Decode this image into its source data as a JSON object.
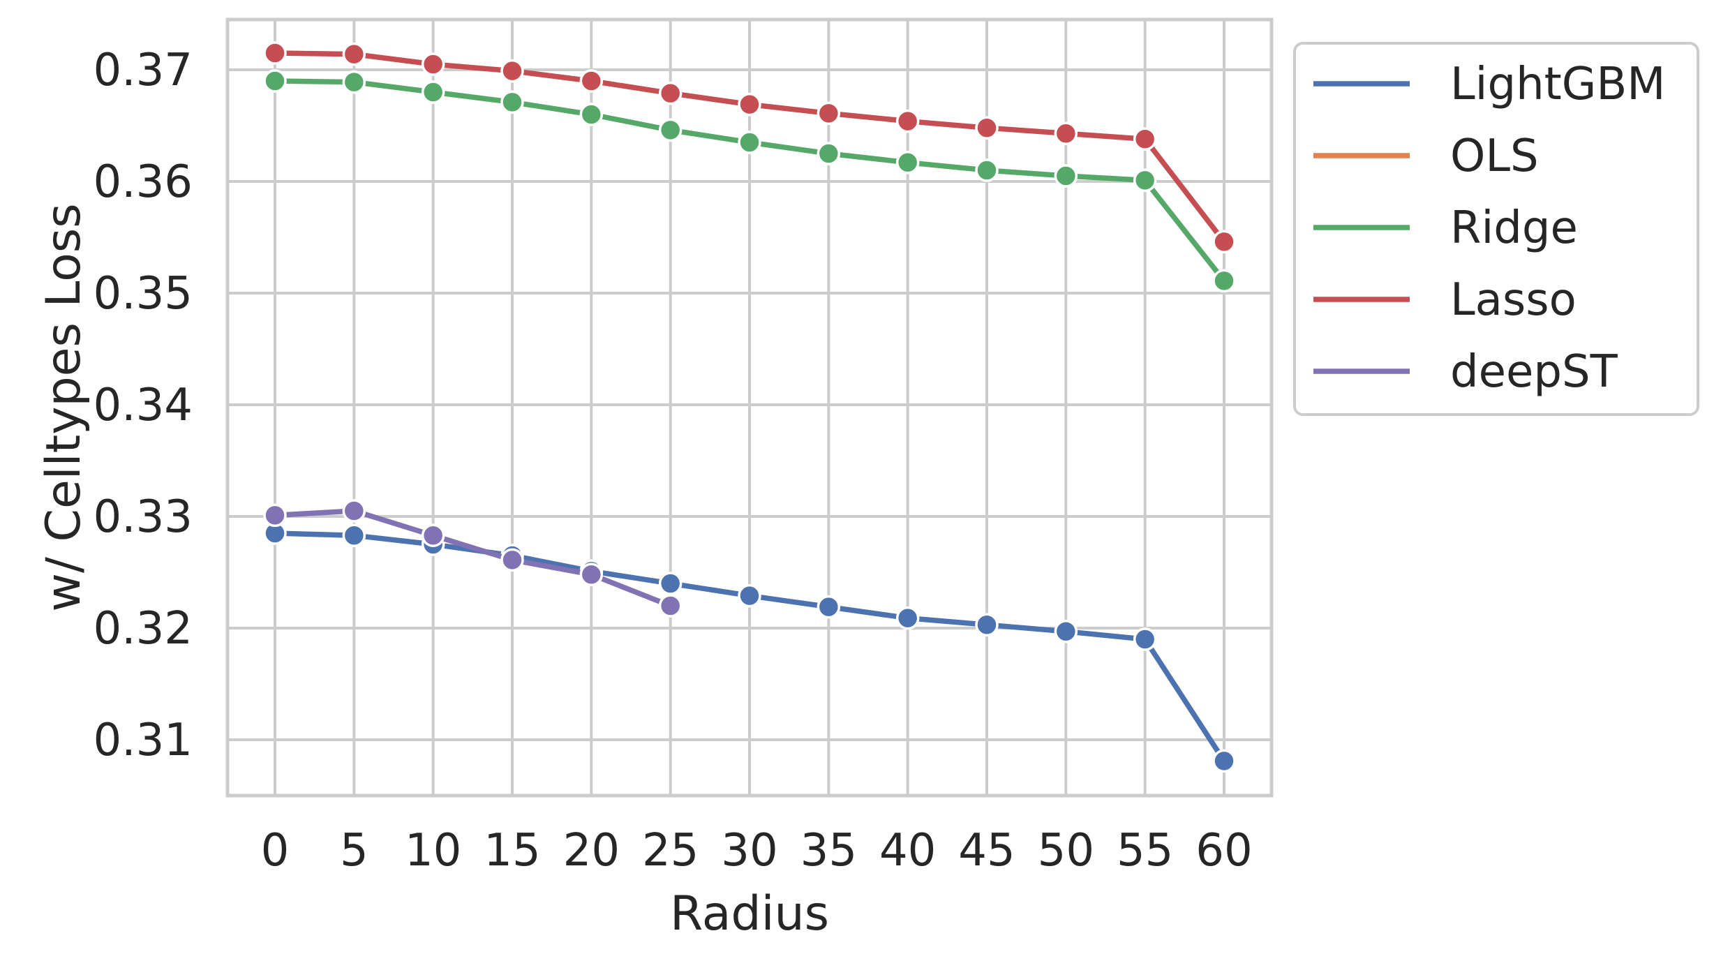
{
  "chart_data": {
    "type": "line",
    "title": "",
    "xlabel": "Radius",
    "ylabel": "w/ Celltypes Loss",
    "x": [
      0,
      5,
      10,
      15,
      20,
      25,
      30,
      35,
      40,
      45,
      50,
      55,
      60
    ],
    "x_ticks": [
      "0",
      "5",
      "10",
      "15",
      "20",
      "25",
      "30",
      "35",
      "40",
      "45",
      "50",
      "55",
      "60"
    ],
    "y_ticks": [
      "0.31",
      "0.32",
      "0.33",
      "0.34",
      "0.35",
      "0.36",
      "0.37"
    ],
    "xlim": [
      -3,
      63
    ],
    "ylim": [
      0.305,
      0.3745
    ],
    "grid": true,
    "legend_position": "outside-right-top",
    "series": [
      {
        "name": "LightGBM",
        "color": "#4c72b0",
        "x": [
          0,
          5,
          10,
          15,
          20,
          25,
          30,
          35,
          40,
          45,
          50,
          55,
          60
        ],
        "values": [
          0.3285,
          0.3283,
          0.3275,
          0.3265,
          0.3251,
          0.324,
          0.3229,
          0.3219,
          0.3209,
          0.3203,
          0.3197,
          0.319,
          0.3081
        ]
      },
      {
        "name": "OLS",
        "color": "#dd8452",
        "x": [],
        "values": []
      },
      {
        "name": "Ridge",
        "color": "#55a868",
        "x": [
          0,
          5,
          10,
          15,
          20,
          25,
          30,
          35,
          40,
          45,
          50,
          55,
          60
        ],
        "values": [
          0.369,
          0.3689,
          0.368,
          0.3671,
          0.366,
          0.3646,
          0.3635,
          0.3625,
          0.3617,
          0.361,
          0.3605,
          0.3601,
          0.3511
        ]
      },
      {
        "name": "Lasso",
        "color": "#c44e52",
        "x": [
          0,
          5,
          10,
          15,
          20,
          25,
          30,
          35,
          40,
          45,
          50,
          55,
          60
        ],
        "values": [
          0.3715,
          0.3714,
          0.3705,
          0.3699,
          0.369,
          0.3679,
          0.3669,
          0.3661,
          0.3654,
          0.3648,
          0.3643,
          0.3638,
          0.3546
        ]
      },
      {
        "name": "deepST",
        "color": "#8172b3",
        "x": [
          0,
          5,
          10,
          15,
          20,
          25
        ],
        "values": [
          0.3301,
          0.3305,
          0.3283,
          0.3261,
          0.3248,
          0.322
        ]
      }
    ]
  }
}
